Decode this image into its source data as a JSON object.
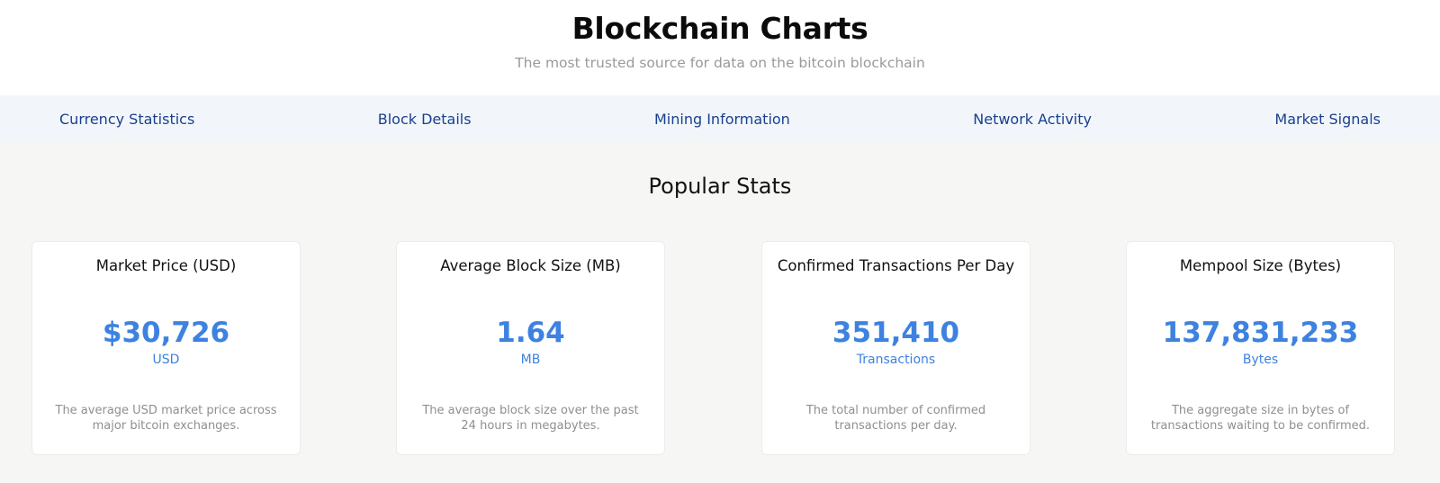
{
  "header": {
    "title": "Blockchain Charts",
    "subtitle": "The most trusted source for data on the bitcoin blockchain"
  },
  "nav": {
    "items": [
      {
        "label": "Currency Statistics"
      },
      {
        "label": "Block Details"
      },
      {
        "label": "Mining Information"
      },
      {
        "label": "Network Activity"
      },
      {
        "label": "Market Signals"
      }
    ]
  },
  "popular": {
    "title": "Popular Stats",
    "cards": [
      {
        "title": "Market Price (USD)",
        "value": "$30,726",
        "unit": "USD",
        "description": "The average USD market price across major bitcoin exchanges."
      },
      {
        "title": "Average Block Size (MB)",
        "value": "1.64",
        "unit": "MB",
        "description": "The average block size over the past 24 hours in megabytes."
      },
      {
        "title": "Confirmed Transactions Per Day",
        "value": "351,410",
        "unit": "Transactions",
        "description": "The total number of confirmed transactions per day."
      },
      {
        "title": "Mempool Size (Bytes)",
        "value": "137,831,233",
        "unit": "Bytes",
        "description": "The aggregate size in bytes of transactions waiting to be confirmed."
      }
    ]
  },
  "colors": {
    "accent": "#3d82e0",
    "nav_link": "#19408f",
    "nav_bg": "#f2f6fa",
    "page_bg": "#f6f6f4"
  }
}
